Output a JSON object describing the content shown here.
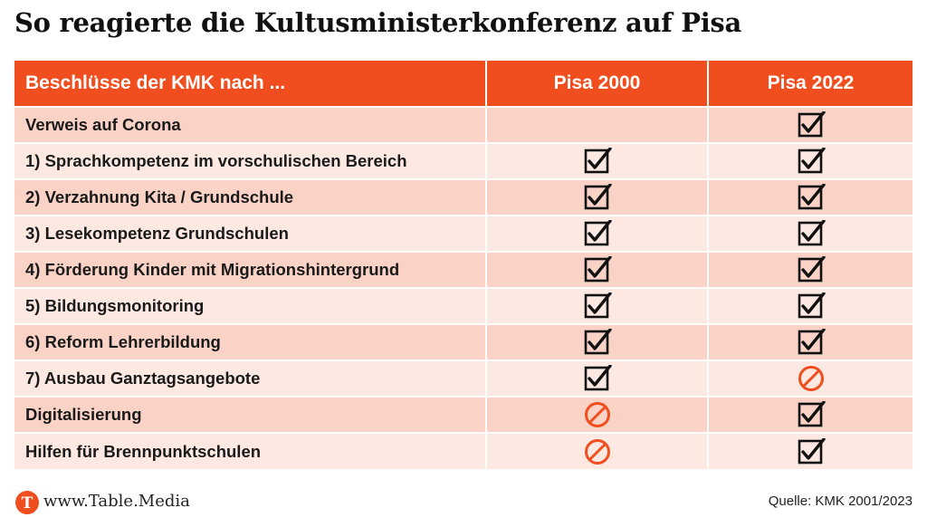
{
  "title": "So reagierte die Kultusministerkonferenz auf Pisa",
  "chart_data": {
    "type": "table",
    "columns": [
      "Beschlüsse der KMK nach ...",
      "Pisa 2000",
      "Pisa 2022"
    ],
    "rows": [
      {
        "label": "Verweis auf Corona",
        "pisa2000": "",
        "pisa2022": "check"
      },
      {
        "label": "1) Sprachkompetenz im vorschulischen Bereich",
        "pisa2000": "check",
        "pisa2022": "check"
      },
      {
        "label": "2) Verzahnung Kita / Grundschule",
        "pisa2000": "check",
        "pisa2022": "check"
      },
      {
        "label": "3) Lesekompetenz Grundschulen",
        "pisa2000": "check",
        "pisa2022": "check"
      },
      {
        "label": "4) Förderung Kinder mit Migrationshintergrund",
        "pisa2000": "check",
        "pisa2022": "check"
      },
      {
        "label": "5) Bildungsmonitoring",
        "pisa2000": "check",
        "pisa2022": "check"
      },
      {
        "label": "6) Reform Lehrerbildung",
        "pisa2000": "check",
        "pisa2022": "check"
      },
      {
        "label": "7) Ausbau Ganztagsangebote",
        "pisa2000": "check",
        "pisa2022": "prohibited"
      },
      {
        "label": "Digitalisierung",
        "pisa2000": "prohibited",
        "pisa2022": "check"
      },
      {
        "label": "Hilfen für Brennpunktschulen",
        "pisa2000": "prohibited",
        "pisa2022": "check"
      }
    ]
  },
  "icons": {
    "check": "checkbox-checked-icon",
    "prohibited": "prohibited-icon"
  },
  "colors": {
    "header": "#f04e1e",
    "row_odd": "#fad3c6",
    "row_even": "#fde9e2",
    "prohibited": "#f04e1e",
    "check": "#111111"
  },
  "footer": {
    "logo_letter": "T",
    "url": "www.Table.Media",
    "source": "Quelle: KMK 2001/2023"
  }
}
